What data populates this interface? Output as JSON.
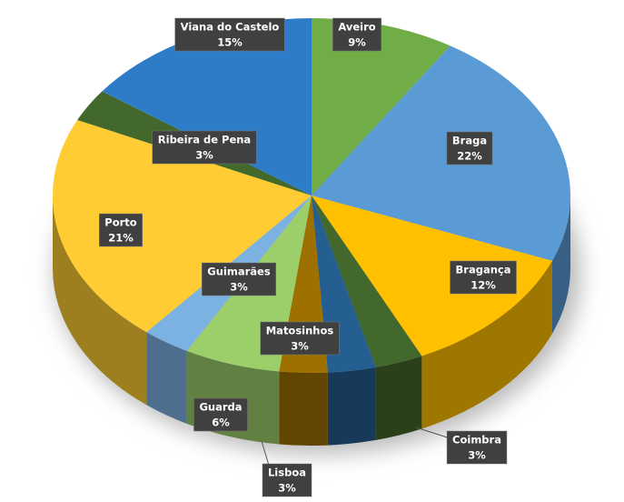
{
  "chart_data": {
    "type": "pie",
    "categories": [
      "Aveiro",
      "Braga",
      "Bragança",
      "Coimbra",
      "Matosinhos",
      "Lisboa",
      "Guarda",
      "Guimarães",
      "Porto",
      "Ribeira de Pena",
      "Viana do Castelo"
    ],
    "values": [
      9,
      22,
      12,
      3,
      3,
      3,
      6,
      3,
      21,
      3,
      15
    ],
    "value_labels": [
      "9%",
      "22%",
      "12%",
      "3%",
      "3%",
      "3%",
      "6%",
      "3%",
      "21%",
      "3%",
      "15%"
    ],
    "colors": [
      "#70ad47",
      "#5b9bd5",
      "#ffc000",
      "#43682b",
      "#255e91",
      "#9e7000",
      "#9ccf6a",
      "#7cb2e2",
      "#ffcd33",
      "#43682b",
      "#2e7cc7"
    ]
  }
}
